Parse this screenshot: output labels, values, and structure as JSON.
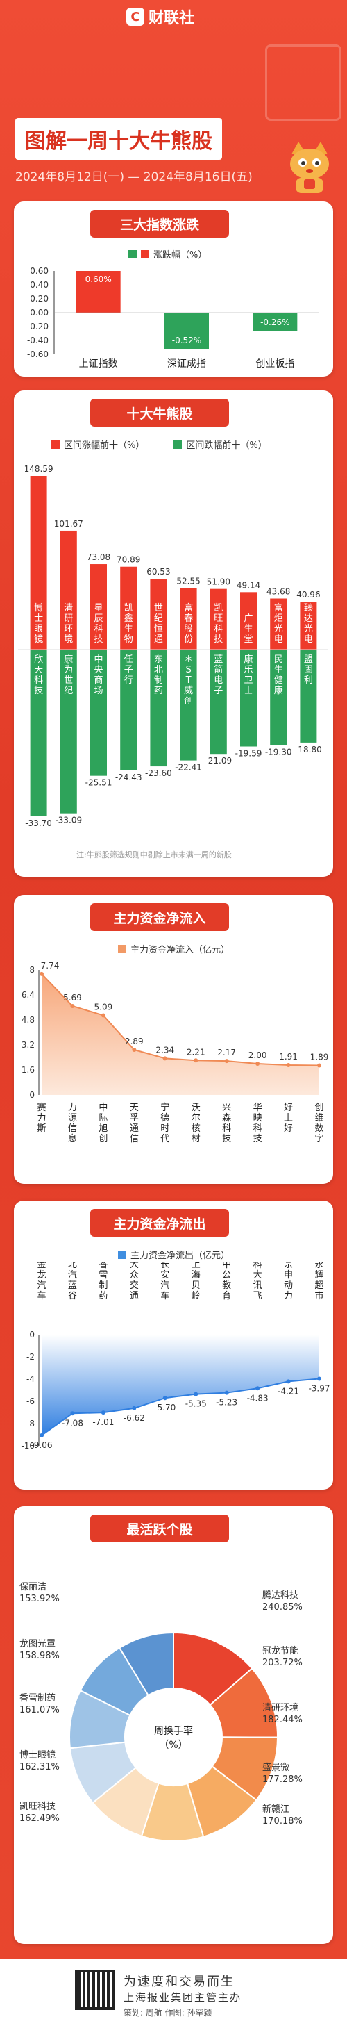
{
  "header": {
    "brand": "财联社",
    "title": "图解一周十大牛熊股",
    "date_range": "2024年8月12日(一) — 2024年8月16日(五)"
  },
  "sections": {
    "index": "三大指数涨跌",
    "top10": "十大牛熊股",
    "inflow": "主力资金净流入",
    "outflow": "主力资金净流出",
    "active": "最活跃个股"
  },
  "note": "注:牛熊股筛选规则中剔除上市未满一周的新股",
  "chart_data": [
    {
      "id": "index",
      "type": "bar",
      "legend": "涨跌幅（%）",
      "categories": [
        "上证指数",
        "深证成指",
        "创业板指"
      ],
      "values": [
        0.6,
        -0.52,
        -0.26
      ],
      "labels": [
        "0.60%",
        "-0.52%",
        "-0.26%"
      ],
      "yticks": [
        "0.60",
        "0.40",
        "0.20",
        "0.00",
        "-0.20",
        "-0.40",
        "-0.60"
      ],
      "ylim": [
        -0.6,
        0.6
      ],
      "colors": {
        "up": "#ee3a2a",
        "down": "#2ea35a"
      }
    },
    {
      "id": "top10",
      "type": "bar",
      "legend_up": "区间涨幅前十（%）",
      "legend_down": "区间跌幅前十（%）",
      "gainers": [
        {
          "name": "博士眼镜",
          "value": 148.59
        },
        {
          "name": "清研环境",
          "value": 101.67
        },
        {
          "name": "星辰科技",
          "value": 73.08
        },
        {
          "name": "凯鑫生物",
          "value": 70.89
        },
        {
          "name": "世纪恒通",
          "value": 60.53
        },
        {
          "name": "富春股份",
          "value": 52.55
        },
        {
          "name": "凯旺科技",
          "value": 51.9
        },
        {
          "name": "广生堂",
          "value": 49.14
        },
        {
          "name": "富炬光电",
          "value": 43.68
        },
        {
          "name": "臻达光电",
          "value": 40.96
        }
      ],
      "losers": [
        {
          "name": "欣天科技",
          "value": -33.7
        },
        {
          "name": "康为世纪",
          "value": -33.09
        },
        {
          "name": "中央商场",
          "value": -25.51
        },
        {
          "name": "任子行",
          "value": -24.43
        },
        {
          "name": "东北制药",
          "value": -23.6
        },
        {
          "name": "＊ST威创",
          "value": -22.41
        },
        {
          "name": "蓝箭电子",
          "value": -21.09
        },
        {
          "name": "康乐卫士",
          "value": -19.59
        },
        {
          "name": "民生健康",
          "value": -19.3
        },
        {
          "name": "盟固利",
          "value": -18.8
        }
      ],
      "gain_labels": [
        "148.59",
        "101.67",
        "73.08",
        "70.89",
        "60.53",
        "52.55",
        "51.90",
        "49.14",
        "43.68",
        "40.96"
      ],
      "loss_labels": [
        "-33.70",
        "-33.09",
        "-25.51",
        "-24.43",
        "-23.60",
        "-22.41",
        "-21.09",
        "-19.59",
        "-19.30",
        "-18.80"
      ]
    },
    {
      "id": "inflow",
      "type": "area",
      "legend": "主力资金净流入（亿元）",
      "categories": [
        "赛力斯",
        "力源信息",
        "中际旭创",
        "天孚通信",
        "宁德时代",
        "沃尔核材",
        "兴森科技",
        "华映科技",
        "好上好",
        "创维数字"
      ],
      "values": [
        7.74,
        5.69,
        5.09,
        2.89,
        2.34,
        2.21,
        2.17,
        2.0,
        1.91,
        1.89
      ],
      "labels": [
        "7.74",
        "5.69",
        "5.09",
        "2.89",
        "2.34",
        "2.21",
        "2.17",
        "2.00",
        "1.91",
        "1.89"
      ],
      "yticks": [
        "8",
        "6.4",
        "4.8",
        "3.2",
        "1.6",
        "0"
      ],
      "ylim": [
        0,
        8
      ]
    },
    {
      "id": "outflow",
      "type": "area",
      "legend": "主力资金净流出（亿元）",
      "categories": [
        "金龙汽车",
        "北汽蓝谷",
        "香雪制药",
        "大众交通",
        "长安汽车",
        "上海贝岭",
        "中公教育",
        "科大讯飞",
        "宗申动力",
        "永辉超市"
      ],
      "values": [
        -9.06,
        -7.08,
        -7.01,
        -6.62,
        -5.7,
        -5.35,
        -5.23,
        -4.83,
        -4.21,
        -3.97
      ],
      "labels": [
        "-9.06",
        "-7.08",
        "-7.01",
        "-6.62",
        "-5.70",
        "-5.35",
        "-5.23",
        "-4.83",
        "-4.21",
        "-3.97"
      ],
      "yticks": [
        "0",
        "-2",
        "-4",
        "-6",
        "-8",
        "-10"
      ],
      "ylim": [
        -10,
        0
      ]
    },
    {
      "id": "active",
      "type": "pie",
      "center_label": "周换手率（%）",
      "slices": [
        {
          "name": "腾达科技",
          "value": 240.85,
          "label": "240.85%"
        },
        {
          "name": "冠龙节能",
          "value": 203.72,
          "label": "203.72%"
        },
        {
          "name": "清研环境",
          "value": 182.44,
          "label": "182.44%"
        },
        {
          "name": "盛景微",
          "value": 177.28,
          "label": "177.28%"
        },
        {
          "name": "新赣江",
          "value": 170.18,
          "label": "170.18%"
        },
        {
          "name": "凯旺科技",
          "value": 162.49,
          "label": "162.49%"
        },
        {
          "name": "博士眼镜",
          "value": 162.31,
          "label": "162.31%"
        },
        {
          "name": "香雪制药",
          "value": 161.07,
          "label": "161.07%"
        },
        {
          "name": "龙图光罩",
          "value": 158.98,
          "label": "158.98%"
        },
        {
          "name": "保丽洁",
          "value": 153.92,
          "label": "153.92%"
        }
      ],
      "colors": [
        "#e8432e",
        "#ef6b3c",
        "#f28b4b",
        "#f6ab62",
        "#f9c98a",
        "#fbe0c0",
        "#c9dcef",
        "#9ec3e6",
        "#74a9dc",
        "#5b93d1"
      ]
    }
  ],
  "footer": {
    "slogan": "为速度和交易而生",
    "slogan2": "上海报业集团主管主办",
    "credits": "策划: 周航      作图: 孙罕颖"
  }
}
